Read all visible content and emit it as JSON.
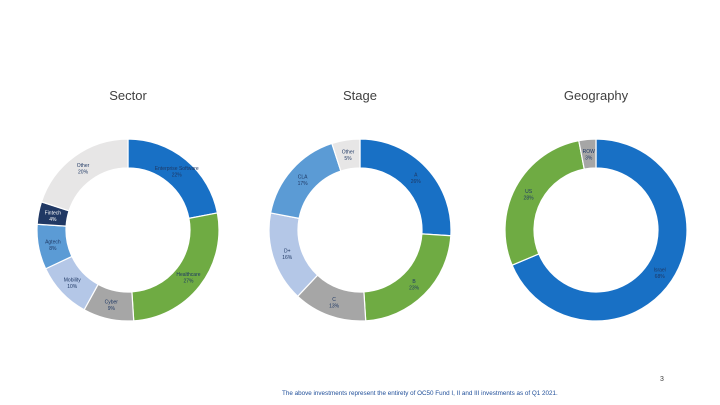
{
  "chart_data": [
    {
      "type": "pie",
      "title": "Sector",
      "categories": [
        "Enterprise Software",
        "Healthcare",
        "Cyber",
        "Mobility",
        "Agtech",
        "Fintech",
        "Other"
      ],
      "values": [
        22,
        27,
        9,
        10,
        8,
        4,
        20
      ],
      "value_labels": [
        "22%",
        "27%",
        "9%",
        "10%",
        "8%",
        "4%",
        "20%"
      ],
      "colors": [
        "#1870c5",
        "#6fab43",
        "#a6a6a6",
        "#b4c7e7",
        "#5b9bd5",
        "#203864",
        "#e7e6e6"
      ],
      "label_colors": [
        "#1f3864",
        "#1f3864",
        "#1f3864",
        "#1f3864",
        "#1f3864",
        "#ffffff",
        "#1f3864"
      ]
    },
    {
      "type": "pie",
      "title": "Stage",
      "categories": [
        "A",
        "B",
        "C",
        "D+",
        "CLA",
        "Other"
      ],
      "values": [
        26,
        23,
        13,
        16,
        17,
        5
      ],
      "value_labels": [
        "26%",
        "23%",
        "13%",
        "16%",
        "17%",
        "5%"
      ],
      "colors": [
        "#1870c5",
        "#6fab43",
        "#a6a6a6",
        "#b4c7e7",
        "#5b9bd5",
        "#e7e6e6"
      ],
      "label_colors": [
        "#1f3864",
        "#1f3864",
        "#1f3864",
        "#1f3864",
        "#1f3864",
        "#1f3864"
      ]
    },
    {
      "type": "pie",
      "title": "Geography",
      "categories": [
        "Israel",
        "US",
        "ROW"
      ],
      "values": [
        68,
        28,
        3
      ],
      "value_labels": [
        "68%",
        "28%",
        "3%"
      ],
      "colors": [
        "#1870c5",
        "#6fab43",
        "#a6a6a6"
      ],
      "label_colors": [
        "#1f3864",
        "#1f3864",
        "#1f3864"
      ]
    }
  ],
  "footnote": "The above investments represent the entirety of OC50 Fund I, II and III investments as of Q1 2021.",
  "page_number": "3"
}
